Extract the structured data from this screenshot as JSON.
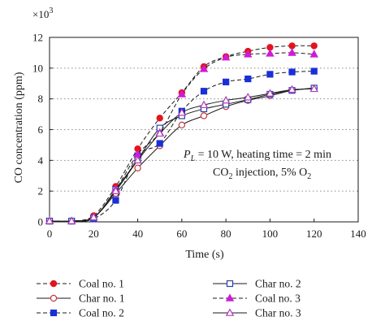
{
  "chart_data": {
    "type": "line",
    "xlabel": "Time (s)",
    "ylabel": "CO concentration (ppm)",
    "y_multiplier": "×10",
    "y_multiplier_exp": "3",
    "xlim": [
      0,
      140
    ],
    "ylim": [
      0,
      12
    ],
    "xticks": [
      0,
      20,
      40,
      60,
      80,
      100,
      120,
      140
    ],
    "yticks": [
      0,
      2,
      4,
      6,
      8,
      10,
      12
    ],
    "grid": "horizontal dotted",
    "legend_position": "bottom, below plot",
    "annotation_line1": {
      "var": "P",
      "sub": "L",
      "text": " = 10 W, heating time = 2 min"
    },
    "annotation_line2": {
      "pre": "CO",
      "sub1": "2",
      "mid": " injection, 5% O",
      "sub2": "2"
    },
    "series": [
      {
        "name": "Coal no. 1",
        "line": "dashed",
        "marker": "circle-filled",
        "color": "#e3141e",
        "x": [
          0,
          10,
          20,
          30,
          40,
          50,
          60,
          70,
          80,
          90,
          100,
          110,
          120
        ],
        "y": [
          0.05,
          0.05,
          0.4,
          2.3,
          4.75,
          6.75,
          8.4,
          10.1,
          10.75,
          11.1,
          11.35,
          11.45,
          11.45
        ]
      },
      {
        "name": "Char no. 1",
        "line": "solid",
        "marker": "circle-open",
        "color": "#c43a3a",
        "x": [
          0,
          10,
          20,
          30,
          40,
          50,
          60,
          70,
          80,
          90,
          100,
          110,
          120
        ],
        "y": [
          0.05,
          0.05,
          0.3,
          1.85,
          3.5,
          4.95,
          6.3,
          6.9,
          7.5,
          7.9,
          8.2,
          8.55,
          8.7
        ]
      },
      {
        "name": "Coal no. 2",
        "line": "dashed",
        "marker": "square-filled",
        "color": "#1a2fd6",
        "x": [
          0,
          10,
          20,
          30,
          40,
          50,
          60,
          70,
          80,
          90,
          100,
          110,
          120
        ],
        "y": [
          0.05,
          0.05,
          0.2,
          1.4,
          4.3,
          5.1,
          7.2,
          8.5,
          9.1,
          9.3,
          9.6,
          9.75,
          9.8
        ]
      },
      {
        "name": "Char no. 2",
        "line": "solid",
        "marker": "square-open",
        "color": "#2a3fae",
        "x": [
          0,
          10,
          20,
          30,
          40,
          50,
          60,
          70,
          80,
          90,
          100,
          110,
          120
        ],
        "y": [
          0.05,
          0.05,
          0.25,
          2.1,
          4.05,
          6.1,
          6.9,
          7.35,
          7.65,
          7.95,
          8.3,
          8.55,
          8.7
        ]
      },
      {
        "name": "Coal no. 3",
        "line": "dashed",
        "marker": "triangle-filled",
        "color": "#d01ad8",
        "x": [
          0,
          10,
          20,
          30,
          40,
          50,
          60,
          70,
          80,
          90,
          100,
          110,
          120
        ],
        "y": [
          0.05,
          0.05,
          0.3,
          2.1,
          4.4,
          5.8,
          8.3,
          9.95,
          10.7,
          10.9,
          10.95,
          11.0,
          10.9
        ]
      },
      {
        "name": "Char no. 3",
        "line": "solid",
        "marker": "triangle-open",
        "color": "#b03cb8",
        "x": [
          0,
          10,
          20,
          30,
          40,
          50,
          60,
          70,
          80,
          90,
          100,
          110,
          120
        ],
        "y": [
          0.05,
          0.05,
          0.3,
          2.0,
          4.0,
          5.75,
          7.1,
          7.6,
          7.9,
          8.1,
          8.35,
          8.6,
          8.65
        ]
      }
    ]
  }
}
